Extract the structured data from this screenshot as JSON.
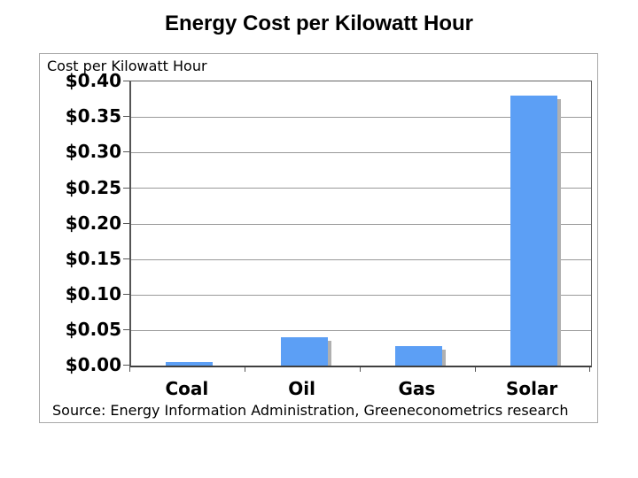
{
  "page": {
    "title": "Energy Cost per Kilowatt Hour"
  },
  "chart": {
    "axis_title": "Cost per Kilowatt Hour",
    "source": "Source: Energy Information Administration, Greeneconometrics research"
  },
  "chart_data": {
    "type": "bar",
    "title": "Energy Cost per Kilowatt Hour",
    "categories": [
      "Coal",
      "Oil",
      "Gas",
      "Solar"
    ],
    "values": [
      0.005,
      0.04,
      0.027,
      0.38
    ],
    "xlabel": "",
    "ylabel": "Cost per Kilowatt Hour",
    "ylim": [
      0,
      0.4
    ],
    "ytick_step": 0.05,
    "ytick_labels": [
      "$0.40",
      "$0.35",
      "$0.30",
      "$0.25",
      "$0.20",
      "$0.15",
      "$0.10",
      "$0.05",
      "$0.00"
    ],
    "grid": true,
    "legend": false,
    "bar_color": "#5C9FF5",
    "bar_shadow_color": "#b0b0b0",
    "source": "Source: Energy Information Administration, Greeneconometrics research"
  }
}
